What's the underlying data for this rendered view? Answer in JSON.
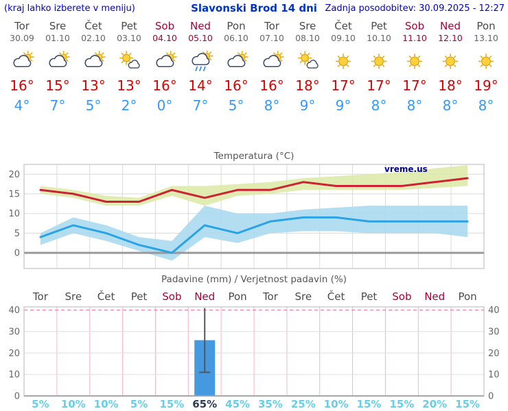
{
  "header": {
    "hint": "(kraj lahko izberete v meniju)",
    "title": "Slavonski Brod 14 dni",
    "updated": "Zadnja posodobitev: 30.09.2025 - 12:27"
  },
  "colors": {
    "link_blue": "#0000cc",
    "title_blue": "#0033cc",
    "weekend": "#aa0033",
    "weekday": "#4a4a4a",
    "temp_high": "#dd0000",
    "temp_low": "#3399ff",
    "bar_blue": "#4499e0",
    "prob_light": "#66cfe8",
    "prob_dark": "#2b3a55",
    "max_line": "#cc2233",
    "min_line": "#29a3e6",
    "max_band": "#dce9a6",
    "min_band": "#a8d8ef"
  },
  "days": [
    {
      "name": "Tor",
      "date": "30.09",
      "icon": "partly",
      "high": "16°",
      "low": "4°",
      "weekend": false
    },
    {
      "name": "Sre",
      "date": "01.10",
      "icon": "partly",
      "high": "15°",
      "low": "7°",
      "weekend": false
    },
    {
      "name": "Čet",
      "date": "02.10",
      "icon": "partly",
      "high": "13°",
      "low": "5°",
      "weekend": false
    },
    {
      "name": "Pet",
      "date": "03.10",
      "icon": "mostly",
      "high": "13°",
      "low": "2°",
      "weekend": false
    },
    {
      "name": "Sob",
      "date": "04.10",
      "icon": "partly",
      "high": "16°",
      "low": "0°",
      "weekend": true
    },
    {
      "name": "Ned",
      "date": "05.10",
      "icon": "showers",
      "high": "14°",
      "low": "7°",
      "weekend": true
    },
    {
      "name": "Pon",
      "date": "06.10",
      "icon": "partly",
      "high": "16°",
      "low": "5°",
      "weekend": false
    },
    {
      "name": "Tor",
      "date": "07.10",
      "icon": "partly",
      "high": "16°",
      "low": "8°",
      "weekend": false
    },
    {
      "name": "Sre",
      "date": "08.10",
      "icon": "mostly",
      "high": "18°",
      "low": "9°",
      "weekend": false
    },
    {
      "name": "Čet",
      "date": "09.10",
      "icon": "sunny",
      "high": "17°",
      "low": "9°",
      "weekend": false
    },
    {
      "name": "Pet",
      "date": "10.10",
      "icon": "sunny",
      "high": "17°",
      "low": "8°",
      "weekend": false
    },
    {
      "name": "Sob",
      "date": "11.10",
      "icon": "sunny",
      "high": "17°",
      "low": "8°",
      "weekend": true
    },
    {
      "name": "Ned",
      "date": "12.10",
      "icon": "sunny",
      "high": "18°",
      "low": "8°",
      "weekend": true
    },
    {
      "name": "Pon",
      "date": "13.10",
      "icon": "sunny",
      "high": "19°",
      "low": "8°",
      "weekend": false
    }
  ],
  "chart_data": [
    {
      "type": "line",
      "title": "Temperatura (°C)",
      "watermark": "vreme.us",
      "x_labels": [
        "Tor",
        "Sre",
        "Čet",
        "Pet",
        "Sob",
        "Ned",
        "Pon",
        "Tor",
        "Sre",
        "Čet",
        "Pet",
        "Sob",
        "Ned",
        "Pon"
      ],
      "ylim": [
        -4,
        22.5
      ],
      "yticks": [
        0,
        5,
        10,
        15,
        20
      ],
      "series": [
        {
          "name": "max",
          "color": "#cc2233",
          "values": [
            16,
            15,
            13,
            13,
            16,
            14,
            16,
            16,
            18,
            17,
            17,
            17,
            18,
            19
          ]
        },
        {
          "name": "min",
          "color": "#29a3e6",
          "values": [
            4,
            7,
            5,
            2,
            0,
            7,
            5,
            8,
            9,
            9,
            8,
            8,
            8,
            8
          ]
        }
      ],
      "bands": [
        {
          "name": "temp-max-band",
          "color": "#dce9a6",
          "upper": [
            17,
            16,
            14.5,
            14,
            17,
            17,
            17.5,
            18,
            19,
            19.5,
            20,
            20.5,
            21.5,
            22.3
          ],
          "lower": [
            15,
            14,
            12,
            12,
            14.5,
            12,
            14.5,
            15,
            16,
            16,
            16,
            16,
            16.5,
            17
          ]
        },
        {
          "name": "temp-min-band",
          "color": "#a8d8ef",
          "upper": [
            5,
            9,
            7,
            4,
            3,
            12,
            10,
            10,
            11,
            11.5,
            12,
            12,
            12,
            12
          ],
          "lower": [
            2,
            5,
            3,
            0.5,
            -2,
            4,
            2.5,
            5,
            5.5,
            5.5,
            5,
            5,
            5,
            4
          ]
        }
      ]
    },
    {
      "type": "bar",
      "title": "Padavine (mm) / Verjetnost padavin (%)",
      "x_labels": [
        "Tor",
        "Sre",
        "Čet",
        "Pet",
        "Sob",
        "Ned",
        "Pon",
        "Tor",
        "Sre",
        "Čet",
        "Pet",
        "Sob",
        "Ned",
        "Pon"
      ],
      "weekend_idx": [
        4,
        5,
        11,
        12
      ],
      "ylim": [
        0,
        41.5
      ],
      "yticks": [
        0,
        10,
        20,
        30,
        40
      ],
      "bars": [
        {
          "index": 5,
          "value": 26,
          "whisker_low": 11,
          "whisker_high": 41
        }
      ],
      "probabilities": [
        "5%",
        "10%",
        "10%",
        "5%",
        "15%",
        "65%",
        "45%",
        "35%",
        "25%",
        "10%",
        "15%",
        "15%",
        "20%",
        "15%"
      ],
      "highlight_index": 5
    }
  ]
}
